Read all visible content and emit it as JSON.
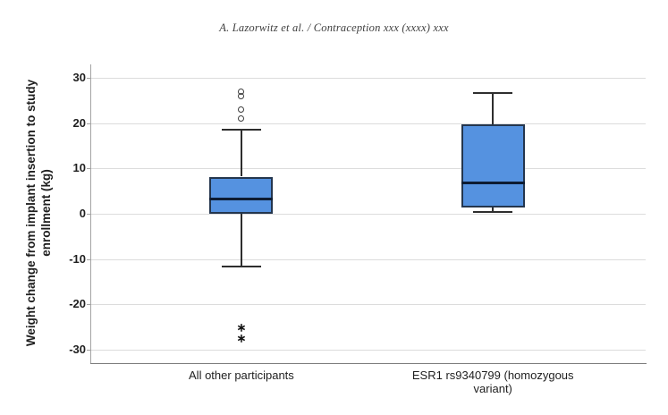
{
  "header": {
    "running_head": "A. Lazorwitz et al. / Contraception xxx (xxxx) xxx"
  },
  "chart_data": {
    "type": "boxplot",
    "title": "",
    "xlabel": "",
    "ylabel": "Weight change from implant insertion to study enrollment (kg)",
    "ylim": [
      -33,
      33
    ],
    "yticks": [
      30,
      20,
      10,
      0,
      -10,
      -20,
      -30
    ],
    "grid": "horizontal",
    "legend": "none",
    "outlier_marker": "circle",
    "extreme_marker": "asterisk",
    "categories": [
      "All other participants",
      "ESR1 rs9340799 (homozygous variant)"
    ],
    "series": [
      {
        "category": "All other participants",
        "whisker_low": -11.7,
        "q1": 0,
        "median": 3.2,
        "q3": 8.2,
        "whisker_high": 18.5,
        "outliers_mild": [
          21,
          23,
          26,
          27
        ],
        "outliers_extreme": [
          -25,
          -27.5
        ]
      },
      {
        "category": "ESR1 rs9340799 (homozygous variant)",
        "whisker_low": 0.3,
        "q1": 1.3,
        "median": 6.8,
        "q3": 19.7,
        "whisker_high": 26.7,
        "outliers_mild": [],
        "outliers_extreme": []
      }
    ],
    "colors": {
      "box_fill": "#5592e0",
      "box_border": "#24364e",
      "median": "#0d1c33",
      "whisker": "#2e2e2e",
      "gridline": "#dcdcdc",
      "axis": "#a3a3a3",
      "tick_label": "#1f1f1f"
    }
  }
}
